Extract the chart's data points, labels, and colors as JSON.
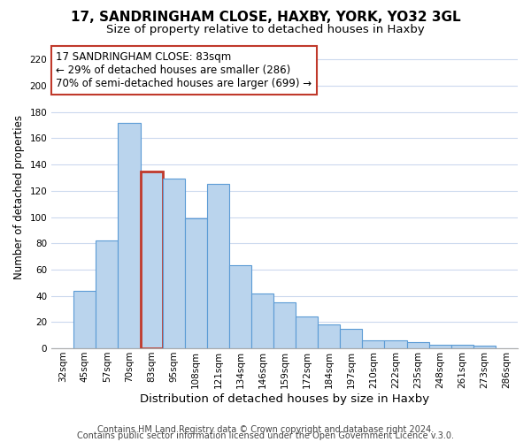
{
  "title": "17, SANDRINGHAM CLOSE, HAXBY, YORK, YO32 3GL",
  "subtitle": "Size of property relative to detached houses in Haxby",
  "xlabel": "Distribution of detached houses by size in Haxby",
  "ylabel": "Number of detached properties",
  "footer_lines": [
    "Contains HM Land Registry data © Crown copyright and database right 2024.",
    "Contains public sector information licensed under the Open Government Licence v.3.0."
  ],
  "bin_labels": [
    "32sqm",
    "45sqm",
    "57sqm",
    "70sqm",
    "83sqm",
    "95sqm",
    "108sqm",
    "121sqm",
    "134sqm",
    "146sqm",
    "159sqm",
    "172sqm",
    "184sqm",
    "197sqm",
    "210sqm",
    "222sqm",
    "235sqm",
    "248sqm",
    "261sqm",
    "273sqm",
    "286sqm"
  ],
  "values": [
    0,
    44,
    82,
    172,
    135,
    129,
    99,
    125,
    63,
    42,
    35,
    24,
    18,
    15,
    6,
    6,
    5,
    3,
    3,
    2,
    0
  ],
  "bar_color": "#bad4ed",
  "bar_edge_color": "#5b9bd5",
  "highlight_bar_index": 4,
  "highlight_bar_edge_color": "#c0392b",
  "annotation_box_text": "17 SANDRINGHAM CLOSE: 83sqm\n← 29% of detached houses are smaller (286)\n70% of semi-detached houses are larger (699) →",
  "annotation_fontsize": 8.5,
  "ylim": [
    0,
    230
  ],
  "yticks": [
    0,
    20,
    40,
    60,
    80,
    100,
    120,
    140,
    160,
    180,
    200,
    220
  ],
  "background_color": "#ffffff",
  "grid_color": "#ccd9ee",
  "title_fontsize": 11,
  "subtitle_fontsize": 9.5,
  "xlabel_fontsize": 9.5,
  "ylabel_fontsize": 8.5,
  "tick_fontsize": 7.5,
  "footer_fontsize": 7
}
